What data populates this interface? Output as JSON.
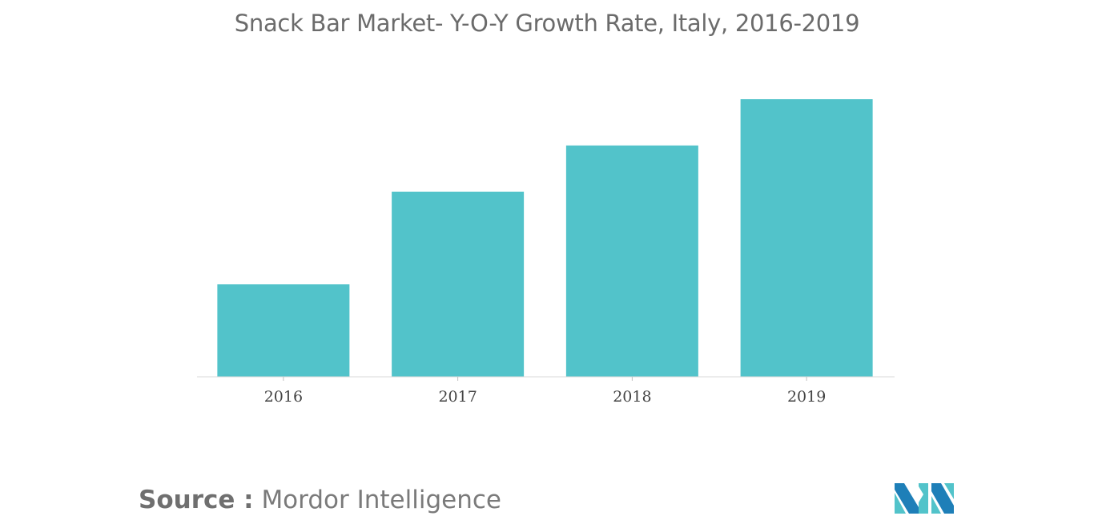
{
  "chart_data": {
    "type": "bar",
    "title": "Snack Bar Market- Y-O-Y Growth Rate, Italy, 2016-2019",
    "categories": [
      "2016",
      "2017",
      "2018",
      "2019"
    ],
    "values": [
      1.0,
      2.0,
      2.5,
      3.0
    ],
    "xlabel": "",
    "ylabel": "",
    "ylim": [
      0,
      3.0
    ],
    "grid": false,
    "bar_color": "#52c3ca"
  },
  "source": {
    "label": "Source :",
    "name": "Mordor Intelligence"
  },
  "logo": {
    "icon": "mordor-intelligence-logo",
    "colors": [
      "#1e7fb8",
      "#52c3ca"
    ]
  }
}
